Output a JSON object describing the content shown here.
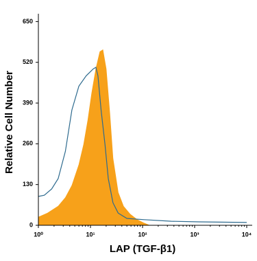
{
  "chart_data": {
    "type": "histogram-overlay",
    "x_label": "LAP (TGF-β1)",
    "y_label": "Relative Cell Number",
    "xscale": "log",
    "xlim": [
      1,
      10000
    ],
    "xticks": [
      {
        "value": 1,
        "label": "10⁰"
      },
      {
        "value": 10,
        "label": "10¹"
      },
      {
        "value": 100,
        "label": "10²"
      },
      {
        "value": 1000,
        "label": "10³"
      },
      {
        "value": 10000,
        "label": "10⁴"
      }
    ],
    "ylim": [
      0,
      675
    ],
    "yticks": [
      0,
      130,
      260,
      390,
      520,
      650
    ],
    "series": [
      {
        "color": "#f7a11a",
        "fill": true,
        "x": [
          1,
          1.5,
          2.4,
          3.3,
          4.4,
          6,
          7.4,
          8.9,
          10.6,
          12.7,
          15.2,
          17.3,
          20,
          23.5,
          27,
          34,
          43,
          58,
          79,
          107,
          135
        ],
        "values": [
          26,
          39,
          61,
          88,
          127,
          193,
          258,
          335,
          422,
          499,
          554,
          560,
          499,
          357,
          214,
          105,
          61,
          35,
          18,
          7,
          0
        ]
      },
      {
        "color": "#2d6a8e",
        "fill": false,
        "x": [
          1,
          1.3,
          1.8,
          2.4,
          3.3,
          4.4,
          6,
          8.3,
          11.3,
          12.7,
          13.9,
          16,
          19,
          22,
          27,
          34,
          50,
          107,
          355,
          1200,
          10000
        ],
        "values": [
          92,
          96,
          116,
          149,
          236,
          368,
          444,
          477,
          499,
          504,
          477,
          368,
          258,
          149,
          72,
          39,
          22,
          18,
          13,
          11,
          9
        ]
      }
    ]
  }
}
